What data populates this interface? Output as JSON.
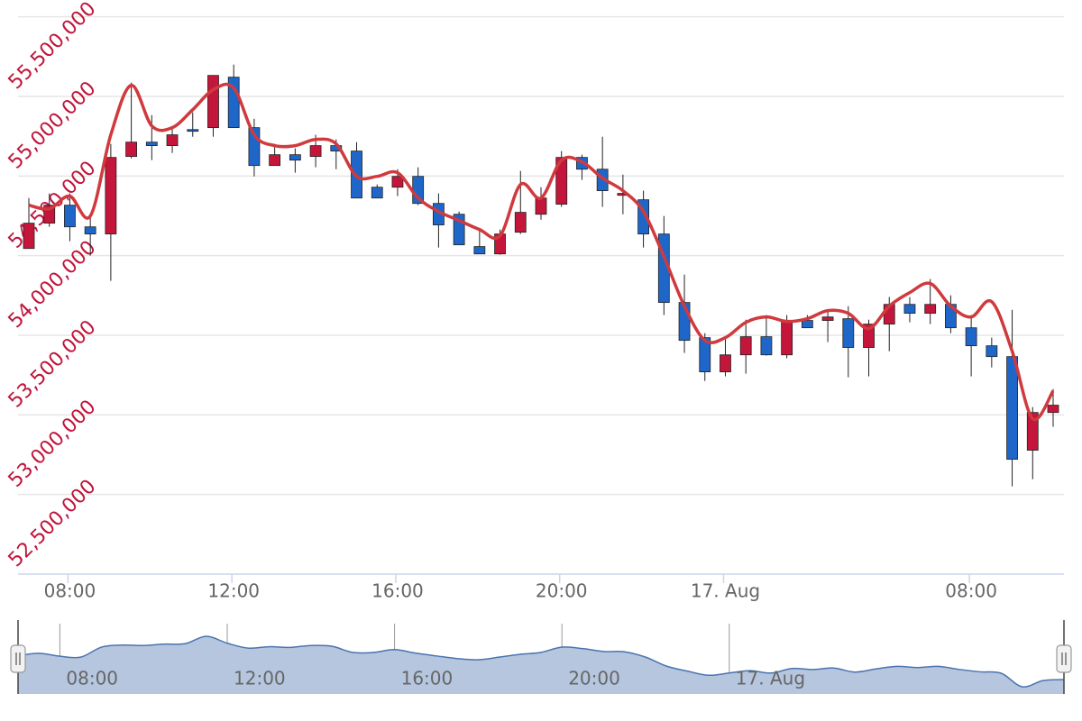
{
  "chart_data": {
    "type": "candlestick",
    "categories": [
      null,
      null,
      "08:00",
      null,
      null,
      null,
      null,
      null,
      null,
      null,
      "12:00",
      null,
      null,
      null,
      null,
      null,
      null,
      null,
      "16:00",
      null,
      null,
      null,
      null,
      null,
      null,
      null,
      "20:00",
      null,
      null,
      null,
      null,
      null,
      null,
      null,
      "17. Aug",
      null,
      null,
      null,
      null,
      null,
      null,
      null,
      null,
      null,
      null,
      null,
      "08:00",
      null,
      null,
      null,
      null
    ],
    "open": [
      54045000,
      54204000,
      54317000,
      54181000,
      54136000,
      54623000,
      54713000,
      54691000,
      54792000,
      54804000,
      55121000,
      54804000,
      54566000,
      54634000,
      54623000,
      54691000,
      54657000,
      54430000,
      54430000,
      54498000,
      54328000,
      54260000,
      54057000,
      54011000,
      54147000,
      54260000,
      54323000,
      54617000,
      54543000,
      54379000,
      54351000,
      54136000,
      53706000,
      53485000,
      53270000,
      53377000,
      53491000,
      53377000,
      53593000,
      53593000,
      53604000,
      53423000,
      53570000,
      53694000,
      53638000,
      53694000,
      53547000,
      53434000,
      53366000,
      52778000,
      53015000
    ],
    "high": [
      54362000,
      54391000,
      54391000,
      54249000,
      54702000,
      55087000,
      54883000,
      54815000,
      54900000,
      55132000,
      55200000,
      54860000,
      54702000,
      54674000,
      54759000,
      54730000,
      54713000,
      54447000,
      54543000,
      54555000,
      54391000,
      54277000,
      54164000,
      54164000,
      54532000,
      54430000,
      54657000,
      54634000,
      54747000,
      54509000,
      54408000,
      54249000,
      53881000,
      53513000,
      53491000,
      53598000,
      53627000,
      53627000,
      53627000,
      53655000,
      53683000,
      53598000,
      53740000,
      53740000,
      53853000,
      53751000,
      53627000,
      53485000,
      53660000,
      53049000,
      53162000
    ],
    "low": [
      54045000,
      54181000,
      54091000,
      54000000,
      53842000,
      54611000,
      54600000,
      54645000,
      54747000,
      54747000,
      54804000,
      54498000,
      54566000,
      54521000,
      54555000,
      54543000,
      54362000,
      54362000,
      54374000,
      54317000,
      54051000,
      54068000,
      54011000,
      54006000,
      54136000,
      54226000,
      54306000,
      54476000,
      54306000,
      54260000,
      54051000,
      53627000,
      53389000,
      53213000,
      53242000,
      53259000,
      53372000,
      53355000,
      53547000,
      53457000,
      53236000,
      53242000,
      53400000,
      53581000,
      53570000,
      53513000,
      53242000,
      53298000,
      52551000,
      52596000,
      52925000
    ],
    "close": [
      54204000,
      54317000,
      54181000,
      54136000,
      54617000,
      54713000,
      54691000,
      54759000,
      54781000,
      55132000,
      54804000,
      54566000,
      54634000,
      54600000,
      54691000,
      54657000,
      54362000,
      54362000,
      54498000,
      54328000,
      54193000,
      54068000,
      54011000,
      54136000,
      54272000,
      54362000,
      54617000,
      54543000,
      54408000,
      54391000,
      54136000,
      53706000,
      53468000,
      53270000,
      53377000,
      53491000,
      53377000,
      53593000,
      53547000,
      53615000,
      53423000,
      53570000,
      53694000,
      53638000,
      53694000,
      53547000,
      53434000,
      53366000,
      52721000,
      53015000,
      53061000
    ],
    "up_color": "#c4163a",
    "down_color": "#1f66c9",
    "line": {
      "type": "spline",
      "color": "#d03a3e",
      "values": [
        54317000,
        54294000,
        54374000,
        54249000,
        54759000,
        55070000,
        54815000,
        54804000,
        54917000,
        55042000,
        55053000,
        54759000,
        54691000,
        54691000,
        54730000,
        54702000,
        54498000,
        54498000,
        54521000,
        54362000,
        54277000,
        54221000,
        54164000,
        54125000,
        54447000,
        54362000,
        54600000,
        54589000,
        54487000,
        54408000,
        54277000,
        53994000,
        53683000,
        53468000,
        53485000,
        53581000,
        53615000,
        53587000,
        53604000,
        53655000,
        53638000,
        53542000,
        53683000,
        53768000,
        53825000,
        53683000,
        53615000,
        53711000,
        53400000,
        52976000,
        53151000
      ]
    },
    "ylim": [
      52000000,
      55600000
    ],
    "yticks": [
      {
        "value": 52500000,
        "label": "52,500,000"
      },
      {
        "value": 53000000,
        "label": "53,000,000"
      },
      {
        "value": 53500000,
        "label": "53,500,000"
      },
      {
        "value": 54000000,
        "label": "54,000,000"
      },
      {
        "value": 54500000,
        "label": "54,500,000"
      },
      {
        "value": 55000000,
        "label": "55,000,000"
      },
      {
        "value": 55500000,
        "label": "55,500,000"
      }
    ],
    "grid": true,
    "navigator": true
  }
}
